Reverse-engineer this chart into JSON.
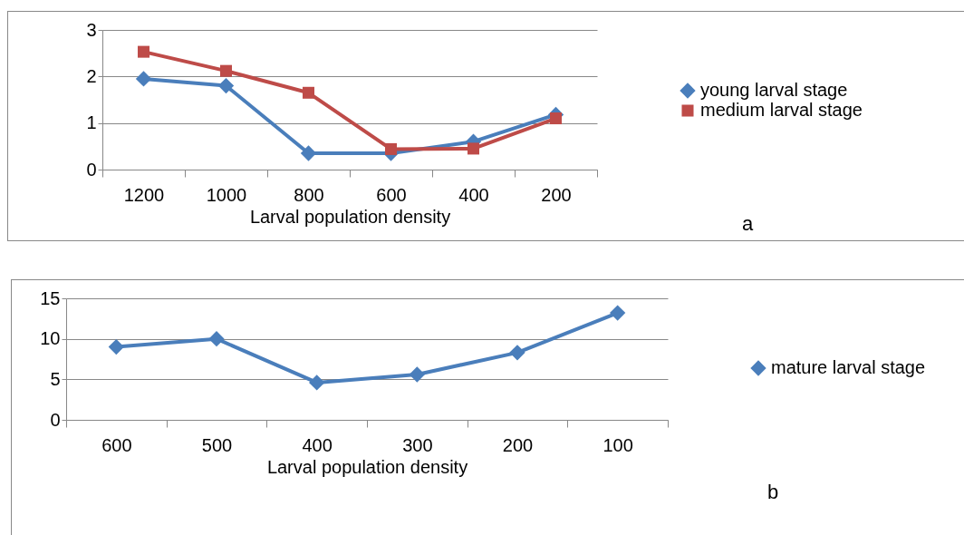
{
  "chart_data": [
    {
      "type": "line",
      "categories": [
        "1200",
        "1000",
        "800",
        "600",
        "400",
        "200"
      ],
      "xlabel": "Larval population density",
      "ylim": [
        0,
        3
      ],
      "yticks": [
        0,
        1,
        2,
        3
      ],
      "grid": "y",
      "legend": "right",
      "annotations": [
        "a"
      ],
      "series": [
        {
          "name": "young larval stage",
          "color": "#4a7ebb",
          "marker": "diamond",
          "values": [
            1.95,
            1.8,
            0.35,
            0.35,
            0.6,
            1.18
          ]
        },
        {
          "name": "medium larval stage",
          "color": "#be4b48",
          "marker": "square",
          "values": [
            2.53,
            2.12,
            1.65,
            0.44,
            0.45,
            1.1
          ]
        }
      ]
    },
    {
      "type": "line",
      "categories": [
        "600",
        "500",
        "400",
        "300",
        "200",
        "100"
      ],
      "xlabel": "Larval population density",
      "ylim": [
        0,
        15
      ],
      "yticks": [
        0,
        5,
        10,
        15
      ],
      "grid": "y",
      "legend": "right",
      "annotations": [
        "b"
      ],
      "series": [
        {
          "name": "mature larval stage",
          "color": "#4a7ebb",
          "marker": "diamond",
          "values": [
            9.0,
            10.0,
            4.6,
            5.6,
            8.3,
            13.2
          ]
        }
      ]
    }
  ]
}
